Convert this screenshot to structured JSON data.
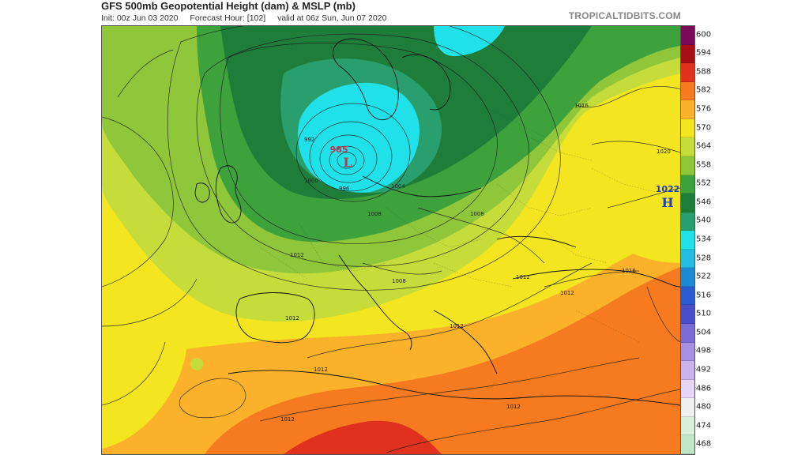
{
  "header": {
    "title": "GFS 500mb Geopotential Height (dam) & MSLP (mb)",
    "init": "Init: 00z Jun 03 2020",
    "forecast_hour": "Forecast Hour: [102]",
    "valid": "valid at 06z Sun, Jun 07 2020",
    "brand": "TROPICALTIDBITS.COM"
  },
  "colorbar": {
    "levels": [
      "600",
      "594",
      "588",
      "582",
      "576",
      "570",
      "564",
      "558",
      "552",
      "546",
      "540",
      "534",
      "528",
      "522",
      "516",
      "510",
      "504",
      "498",
      "492",
      "486",
      "480",
      "474",
      "468"
    ],
    "colors": [
      "#7a0a5a",
      "#a50f15",
      "#e0301e",
      "#f57a20",
      "#fbb22a",
      "#f3e51f",
      "#c5dc3a",
      "#8fc63a",
      "#3da13c",
      "#1f7d3a",
      "#2a9f6e",
      "#20e0e8",
      "#23bde3",
      "#1d8ad6",
      "#2b5bd0",
      "#4a4fc7",
      "#7b6cd3",
      "#a48fe0",
      "#c9b3ec",
      "#e6d5f4",
      "#eef0f0",
      "#d8f0dc",
      "#bfe6c6"
    ]
  },
  "map": {
    "low_center": {
      "value": "985",
      "symbol": "L",
      "color": "#c0394b"
    },
    "high_center": {
      "value": "1022",
      "symbol": "H",
      "color": "#1f3fbf"
    },
    "isobar_labels": [
      "992",
      "1000",
      "996",
      "1004",
      "1008",
      "1012",
      "1016",
      "1020",
      "1008",
      "1012",
      "1016",
      "1012",
      "1012",
      "1012",
      "1012",
      "1008",
      "1012",
      "1012"
    ]
  }
}
